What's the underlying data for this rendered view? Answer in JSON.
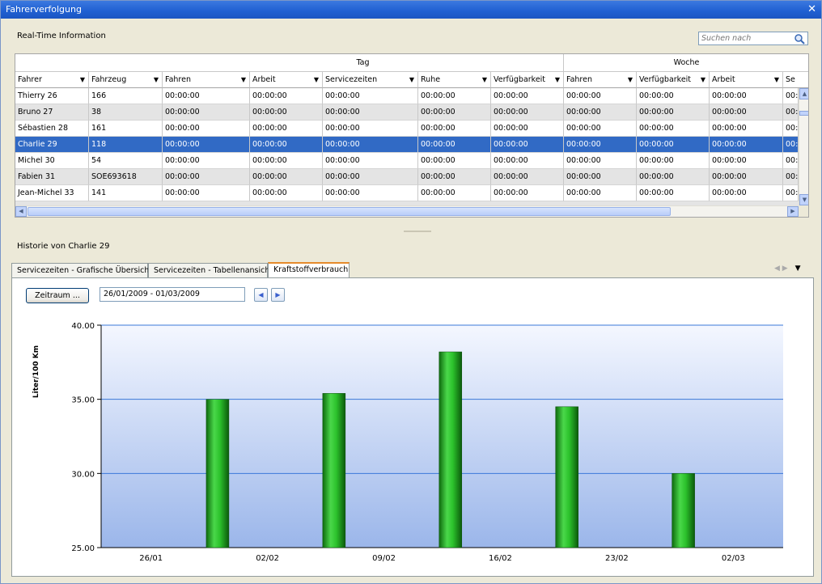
{
  "window": {
    "title": "Fahrerverfolgung",
    "close_glyph": "✕"
  },
  "realtime": {
    "title": "Real-Time Information",
    "search_placeholder": "Suchen nach",
    "groups": {
      "tag": "Tag",
      "woche": "Woche"
    },
    "headers": [
      "Fahrer",
      "Fahrzeug",
      "Fahren",
      "Arbeit",
      "Servicezeiten",
      "Ruhe",
      "Verfügbarkeit",
      "Fahren",
      "Verfügbarkeit",
      "Arbeit",
      "Se"
    ],
    "rows": [
      {
        "fahrer": "Thierry 26",
        "fahrzeug": "166",
        "style": "normal"
      },
      {
        "fahrer": "Bruno 27",
        "fahrzeug": "38",
        "style": "alt"
      },
      {
        "fahrer": "Sébastien 28",
        "fahrzeug": "161",
        "style": "normal"
      },
      {
        "fahrer": "Charlie 29",
        "fahrzeug": "118",
        "style": "selected"
      },
      {
        "fahrer": "Michel 30",
        "fahrzeug": "54",
        "style": "normal"
      },
      {
        "fahrer": "Fabien 31",
        "fahrzeug": "SOE693618",
        "style": "alt"
      },
      {
        "fahrer": "Jean-Michel 33",
        "fahrzeug": "141",
        "style": "normal"
      }
    ],
    "time_value": "00:00:00",
    "time_value_trunc": "00:"
  },
  "history": {
    "title": "Historie von Charlie 29",
    "tabs": [
      {
        "label": "Servicezeiten - Grafische Übersicht",
        "active": false
      },
      {
        "label": "Servicezeiten - Tabellenansicht",
        "active": false
      },
      {
        "label": "Kraftstoffverbrauch",
        "active": true
      }
    ],
    "tab_nav": {
      "prev": "◀",
      "next": "▶",
      "menu": "▼"
    },
    "zeitraum_label": "Zeitraum ...",
    "date_range": "26/01/2009 - 01/03/2009",
    "prev_glyph": "◀",
    "next_glyph": "▶"
  },
  "colors": {
    "selection": "#316ac5",
    "bar": "#22aa22",
    "plot_top": "#f4f7ff",
    "plot_bottom": "#9bb6ea",
    "grid": "#3a78d8"
  },
  "chart_data": {
    "type": "bar",
    "ylabel": "Liter/100 Km",
    "ylim": [
      25,
      40
    ],
    "yticks": [
      "25.00",
      "30.00",
      "35.00",
      "40.00"
    ],
    "x_ticks": [
      "26/01",
      "02/02",
      "09/02",
      "16/02",
      "23/02",
      "02/03"
    ],
    "bar_dates": [
      "30/01",
      "06/02",
      "13/02",
      "20/02",
      "27/02"
    ],
    "values": [
      35.0,
      35.4,
      38.2,
      34.5,
      30.0
    ],
    "grid": true
  }
}
